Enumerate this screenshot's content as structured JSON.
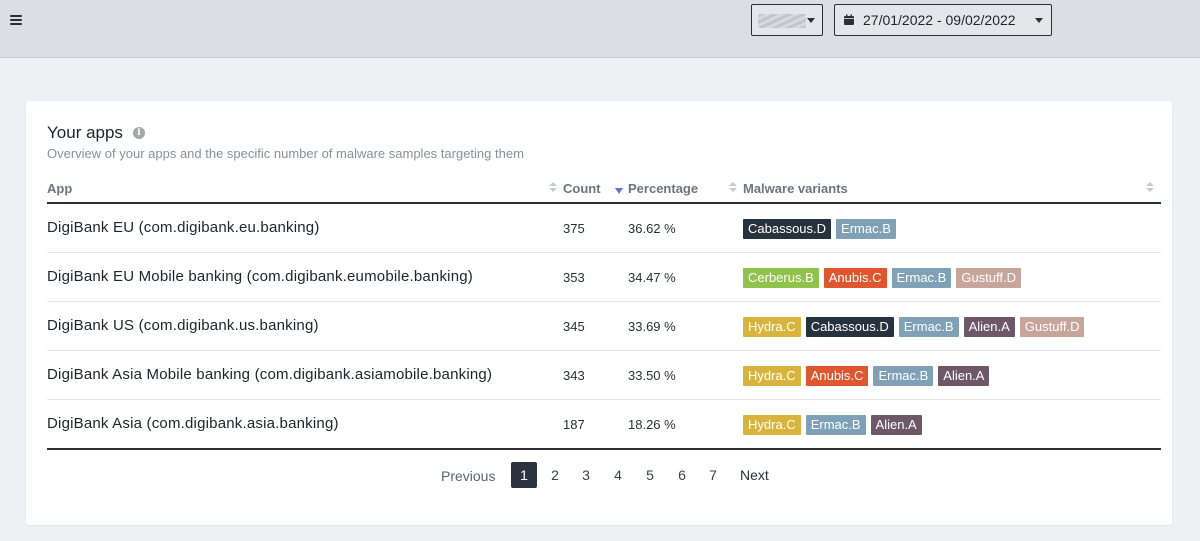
{
  "topbar": {
    "menu_icon": "hamburger-icon",
    "account_select_icon": "chevron-down-icon",
    "date_picker": {
      "icon": "calendar-icon",
      "range": "27/01/2022 - 09/02/2022"
    }
  },
  "card": {
    "title": "Your apps",
    "info_icon": "info-icon",
    "subtitle": "Overview of your apps and the specific number of malware samples targeting them"
  },
  "table": {
    "columns": {
      "app": "App",
      "count": "Count",
      "percentage": "Percentage",
      "variants": "Malware variants"
    },
    "sort": {
      "column": "percentage",
      "direction": "desc"
    },
    "rows": [
      {
        "app": "DigiBank EU (com.digibank.eu.banking)",
        "count": "375",
        "percentage": "36.62 %",
        "variants": [
          "Cabassous.D",
          "Ermac.B"
        ]
      },
      {
        "app": "DigiBank EU Mobile banking (com.digibank.eumobile.banking)",
        "count": "353",
        "percentage": "34.47 %",
        "variants": [
          "Cerberus.B",
          "Anubis.C",
          "Ermac.B",
          "Gustuff.D"
        ]
      },
      {
        "app": "DigiBank US (com.digibank.us.banking)",
        "count": "345",
        "percentage": "33.69 %",
        "variants": [
          "Hydra.C",
          "Cabassous.D",
          "Ermac.B",
          "Alien.A",
          "Gustuff.D"
        ]
      },
      {
        "app": "DigiBank Asia Mobile banking (com.digibank.asiamobile.banking)",
        "count": "343",
        "percentage": "33.50 %",
        "variants": [
          "Hydra.C",
          "Anubis.C",
          "Ermac.B",
          "Alien.A"
        ]
      },
      {
        "app": "DigiBank Asia (com.digibank.asia.banking)",
        "count": "187",
        "percentage": "18.26 %",
        "variants": [
          "Hydra.C",
          "Ermac.B",
          "Alien.A"
        ]
      }
    ]
  },
  "variant_colors": {
    "Cabassous.D": "#27323f",
    "Ermac.B": "#7fa1b8",
    "Cerberus.B": "#8fc34a",
    "Anubis.C": "#e0562f",
    "Gustuff.D": "#c7a59a",
    "Hydra.C": "#d8b43c",
    "Alien.A": "#6e5868"
  },
  "pagination": {
    "previous": "Previous",
    "pages": [
      "1",
      "2",
      "3",
      "4",
      "5",
      "6",
      "7"
    ],
    "active": "1",
    "next": "Next"
  }
}
